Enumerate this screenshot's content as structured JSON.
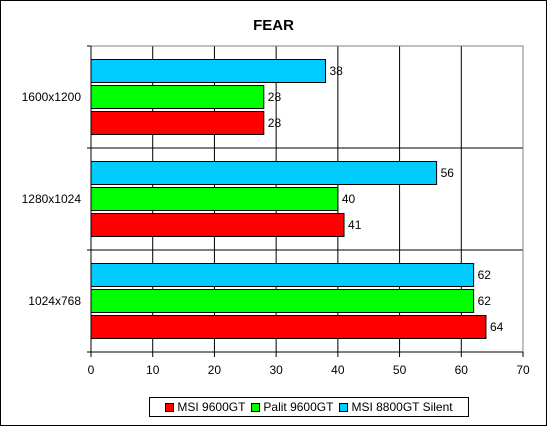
{
  "chart_data": {
    "type": "bar",
    "orientation": "horizontal",
    "title": "FEAR",
    "categories": [
      "1600x1200",
      "1280x1024",
      "1024x768"
    ],
    "series": [
      {
        "name": "MSI 9600GT",
        "color": "#ff0000",
        "values": [
          28,
          41,
          64
        ]
      },
      {
        "name": "Palit 9600GT",
        "color": "#00ff00",
        "values": [
          28,
          40,
          62
        ]
      },
      {
        "name": "MSI 8800GT Silent",
        "color": "#00ccff",
        "values": [
          38,
          56,
          62
        ]
      }
    ],
    "xlim": [
      0,
      70
    ],
    "x_ticks": [
      0,
      10,
      20,
      30,
      40,
      50,
      60,
      70
    ],
    "grid": true,
    "legend_position": "bottom"
  }
}
